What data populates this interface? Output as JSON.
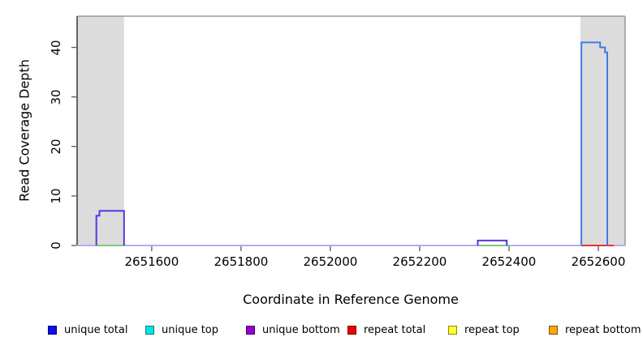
{
  "chart_data": {
    "type": "line",
    "title": "",
    "xlabel": "Coordinate in Reference Genome",
    "ylabel": "Read Coverage Depth",
    "xlim": [
      2651433,
      2652660
    ],
    "ylim": [
      0,
      46.3
    ],
    "grid": false,
    "legend_position": "bottom",
    "x_ticks": [
      {
        "value": 2651600,
        "label": "2651600"
      },
      {
        "value": 2651800,
        "label": "2651800"
      },
      {
        "value": 2652000,
        "label": "2652000"
      },
      {
        "value": 2652200,
        "label": "2652200"
      },
      {
        "value": 2652400,
        "label": "2652400"
      },
      {
        "value": 2652600,
        "label": "2652600"
      }
    ],
    "y_ticks": [
      {
        "value": 0,
        "label": "0"
      },
      {
        "value": 10,
        "label": "10"
      },
      {
        "value": 20,
        "label": "20"
      },
      {
        "value": 30,
        "label": "30"
      },
      {
        "value": 40,
        "label": "40"
      }
    ],
    "shaded_regions": [
      {
        "name": "shaded-region-left",
        "x0": 2651433,
        "x1": 2651538,
        "color": "#dcdcdc"
      },
      {
        "name": "shaded-region-right",
        "x0": 2652560,
        "x1": 2652660,
        "color": "#dcdcdc"
      }
    ],
    "series": [
      {
        "name": "baseline-zero-coverage",
        "color": "#b4abf4",
        "width": 2,
        "points": [
          [
            2651433,
            0
          ],
          [
            2652660,
            0
          ]
        ]
      },
      {
        "name": "unique-top-zero-left-peak",
        "color": "#7fc97f",
        "width": 2,
        "points": [
          [
            2651476,
            0
          ],
          [
            2651538,
            0
          ]
        ]
      },
      {
        "name": "unique-top-zero-middle-bump",
        "color": "#7fc97f",
        "width": 2,
        "points": [
          [
            2652330,
            0
          ],
          [
            2652400,
            0
          ]
        ]
      },
      {
        "name": "repeat-total-zero-right-peak",
        "color": "#e43636",
        "width": 2,
        "points": [
          [
            2652562,
            0
          ],
          [
            2652635,
            0
          ]
        ]
      },
      {
        "name": "unique-bottom-left-peak",
        "color": "#5a35e4",
        "width": 2,
        "points": [
          [
            2651476,
            0
          ],
          [
            2651476,
            6
          ],
          [
            2651483,
            6
          ],
          [
            2651483,
            7
          ],
          [
            2651538,
            7
          ],
          [
            2651538,
            0
          ]
        ]
      },
      {
        "name": "unique-bottom-middle-bump",
        "color": "#5a35e4",
        "width": 2,
        "points": [
          [
            2652330,
            0
          ],
          [
            2652330,
            1
          ],
          [
            2652395,
            1
          ],
          [
            2652395,
            0
          ]
        ]
      },
      {
        "name": "unique-total-right-peak",
        "color": "#3f7bea",
        "width": 2,
        "points": [
          [
            2652562,
            0
          ],
          [
            2652562,
            41
          ],
          [
            2652604,
            41
          ],
          [
            2652604,
            40
          ],
          [
            2652615,
            40
          ],
          [
            2652615,
            39
          ],
          [
            2652620,
            39
          ],
          [
            2652620,
            0
          ]
        ]
      }
    ],
    "legend": [
      {
        "label": "unique total",
        "fill": "#0d0deb",
        "border": "#000080"
      },
      {
        "label": "unique top",
        "fill": "#00e5e5",
        "border": "#007a7a"
      },
      {
        "label": "unique bottom",
        "fill": "#9400d3",
        "border": "#4b0068"
      },
      {
        "label": "repeat total",
        "fill": "#ee0000",
        "border": "#7a0000"
      },
      {
        "label": "repeat top",
        "fill": "#ffff33",
        "border": "#8a8a00"
      },
      {
        "label": "repeat bottom",
        "fill": "#ffa500",
        "border": "#7a5200"
      }
    ]
  }
}
